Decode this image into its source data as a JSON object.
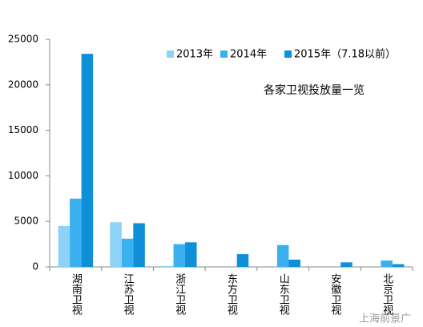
{
  "chart_data": {
    "type": "bar",
    "title": "各家卫视投放量一览",
    "categories": [
      "湖南卫视",
      "江苏卫视",
      "浙江卫视",
      "东方卫视",
      "山东卫视",
      "安徽卫视",
      "北京卫视"
    ],
    "series": [
      {
        "name": "2013年",
        "color": "#8dd3f7",
        "values": [
          4500,
          4900,
          100,
          0,
          0,
          0,
          0
        ]
      },
      {
        "name": "2014年",
        "color": "#3bb0ef",
        "values": [
          7500,
          3100,
          2500,
          0,
          2400,
          0,
          700
        ]
      },
      {
        "name": "2015年（7.18以前）",
        "color": "#0f8fd8",
        "values": [
          23400,
          4800,
          2700,
          1400,
          800,
          500,
          300
        ]
      }
    ],
    "ylim": [
      0,
      25000
    ],
    "yticks": [
      0,
      5000,
      10000,
      15000,
      20000,
      25000
    ],
    "grid": false,
    "legend": "top-right",
    "watermark": "上海前景广"
  }
}
